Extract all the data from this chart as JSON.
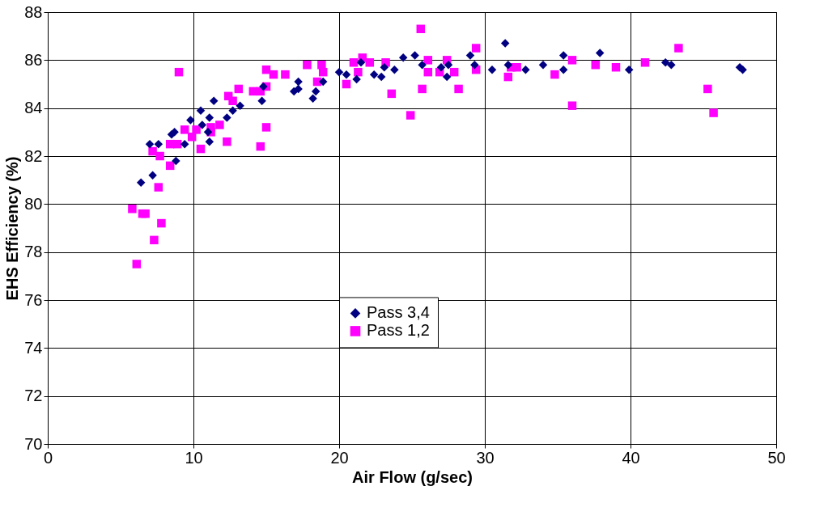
{
  "chart_data": {
    "type": "scatter",
    "xlabel": "Air Flow (g/sec)",
    "ylabel": "EHS Efficiency (%)",
    "xlim": [
      0,
      50
    ],
    "xticks": [
      0,
      10,
      20,
      30,
      40,
      50
    ],
    "ylim": [
      70,
      88
    ],
    "yticks": [
      70,
      72,
      74,
      76,
      78,
      80,
      82,
      84,
      86,
      88
    ],
    "grid": true,
    "legend": "center",
    "series": [
      {
        "name": "Pass 3,4",
        "color": "#000080",
        "marker": "diamond",
        "x": [
          6.4,
          7.2,
          7.0,
          7.6,
          8.8,
          8.7,
          8.5,
          9.4,
          9.8,
          10.5,
          10.6,
          11.1,
          11.1,
          11.4,
          11.0,
          12.3,
          12.7,
          13.2,
          14.7,
          14.8,
          16.9,
          17.2,
          17.2,
          18.2,
          18.4,
          18.9,
          20.0,
          20.5,
          21.2,
          21.5,
          22.4,
          22.9,
          23.1,
          23.8,
          24.4,
          25.2,
          25.7,
          27.0,
          27.4,
          27.5,
          29.0,
          29.3,
          30.5,
          31.4,
          31.6,
          32.8,
          34.0,
          35.4,
          35.4,
          37.9,
          39.9,
          42.4,
          42.8,
          47.5,
          47.7
        ],
        "values": [
          80.9,
          81.2,
          82.5,
          82.5,
          81.8,
          83.0,
          82.9,
          82.5,
          83.5,
          83.9,
          83.3,
          83.6,
          82.6,
          84.3,
          83.0,
          83.6,
          83.9,
          84.1,
          84.3,
          84.9,
          84.7,
          84.8,
          85.1,
          84.4,
          84.7,
          85.1,
          85.5,
          85.4,
          85.2,
          85.9,
          85.4,
          85.3,
          85.7,
          85.6,
          86.1,
          86.2,
          85.8,
          85.7,
          85.3,
          85.8,
          86.2,
          85.8,
          85.6,
          86.7,
          85.8,
          85.6,
          85.8,
          86.2,
          85.6,
          86.3,
          85.6,
          85.9,
          85.8,
          85.7,
          85.6
        ]
      },
      {
        "name": "Pass 1,2",
        "color": "#ff00ff",
        "marker": "square",
        "x": [
          5.8,
          6.5,
          6.7,
          7.8,
          7.3,
          6.1,
          7.6,
          7.2,
          7.7,
          8.4,
          8.4,
          8.9,
          9.0,
          9.4,
          9.9,
          10.2,
          10.5,
          11.2,
          11.8,
          11.2,
          12.3,
          12.4,
          12.7,
          13.1,
          14.1,
          14.6,
          15.0,
          14.6,
          15.0,
          15.0,
          15.5,
          16.3,
          17.8,
          18.8,
          18.9,
          18.5,
          20.5,
          21.0,
          21.6,
          22.1,
          21.3,
          23.2,
          23.6,
          24.9,
          25.6,
          26.1,
          26.1,
          25.7,
          26.9,
          27.4,
          27.9,
          28.2,
          29.4,
          29.4,
          31.6,
          31.8,
          32.2,
          34.8,
          36.0,
          36.0,
          37.6,
          39.0,
          41.0,
          43.3,
          45.3,
          45.7
        ],
        "values": [
          79.8,
          79.6,
          79.6,
          79.2,
          78.5,
          77.5,
          80.7,
          82.2,
          82.0,
          81.6,
          82.5,
          82.5,
          85.5,
          83.1,
          82.8,
          83.1,
          82.3,
          83.2,
          83.3,
          83.0,
          82.6,
          84.5,
          84.3,
          84.8,
          84.7,
          84.7,
          83.2,
          82.4,
          84.9,
          85.6,
          85.4,
          85.4,
          85.8,
          85.8,
          85.5,
          85.1,
          85.0,
          85.9,
          86.1,
          85.9,
          85.5,
          85.9,
          84.6,
          83.7,
          87.3,
          86.0,
          85.5,
          84.8,
          85.5,
          86.0,
          85.5,
          84.8,
          86.5,
          85.6,
          85.3,
          85.7,
          85.7,
          85.4,
          86.0,
          84.1,
          85.8,
          85.7,
          85.9,
          86.5,
          84.8,
          83.8
        ]
      }
    ]
  }
}
